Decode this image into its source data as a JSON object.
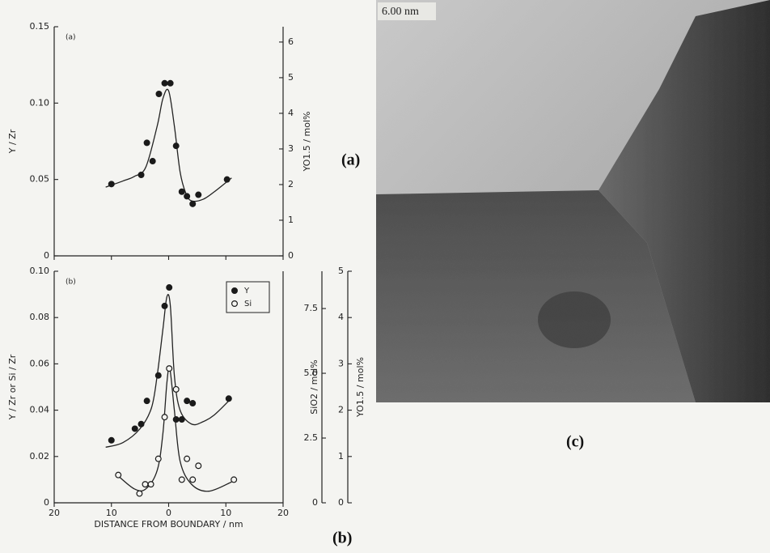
{
  "chart_data": [
    {
      "type": "scatter",
      "panel": "(a)",
      "y_label": "Y / Zr",
      "y2label": "YO1.5 / mol%",
      "xlim": [
        -20,
        20
      ],
      "xticks": [
        -20,
        -10,
        0,
        10,
        20
      ],
      "ylim": [
        0,
        0.15
      ],
      "yticks": [
        0,
        0.05,
        {
          "value": 0.1,
          "label": "0.10"
        },
        0.15
      ],
      "y2lim": [
        0,
        6.43
      ],
      "y2ticks": [
        0,
        1,
        2,
        3,
        4,
        5,
        6
      ],
      "series": [
        {
          "marker": "filled",
          "color": "#1a1a1a",
          "x": [
            -10,
            -4.8,
            -3.8,
            -2.8,
            -1.7,
            -0.7,
            0.3,
            1.3,
            2.3,
            3.2,
            4.2,
            5.2,
            10.2
          ],
          "values": [
            0.047,
            0.053,
            0.074,
            0.062,
            0.106,
            0.113,
            0.113,
            0.072,
            0.042,
            0.039,
            0.034,
            0.04,
            0.05
          ],
          "fit": {
            "x": [
              -11,
              -8,
              -6,
              -4,
              -2,
              -1,
              0,
              1,
              2,
              3,
              4,
              6,
              8,
              11
            ],
            "values": [
              0.045,
              0.049,
              0.052,
              0.058,
              0.085,
              0.103,
              0.108,
              0.085,
              0.055,
              0.041,
              0.036,
              0.037,
              0.042,
              0.051
            ]
          }
        }
      ]
    },
    {
      "type": "scatter",
      "panel": "(b)",
      "x_label": "DISTANCE FROM BOUNDARY / nm",
      "y_label": "Y / Zr or Si / Zr",
      "y2label": "SiO2 / mol%",
      "y3label": "YO1.5 / mol%",
      "xlim": [
        -20,
        20
      ],
      "xticks": [
        {
          "value": -20,
          "label": "20"
        },
        {
          "value": -10,
          "label": "10"
        },
        0,
        10,
        20
      ],
      "ylim": [
        0,
        0.1
      ],
      "yticks": [
        0,
        0.02,
        0.04,
        0.06,
        0.08,
        {
          "value": 0.1,
          "label": "0.10"
        }
      ],
      "y2lim": [
        0,
        8.94
      ],
      "y2ticks": [
        0,
        2.5,
        {
          "value": 5,
          "label": "5.0"
        },
        7.5
      ],
      "y3lim": [
        0,
        5
      ],
      "y3ticks": [
        0,
        1,
        2,
        3,
        4,
        5
      ],
      "legend": "upper right",
      "series": [
        {
          "name": "Y",
          "marker": "filled",
          "color": "#1a1a1a",
          "x": [
            -10,
            -5.9,
            -4.8,
            -3.8,
            -1.8,
            -0.7,
            0.1,
            1.3,
            2.3,
            3.2,
            4.2,
            10.5
          ],
          "values": [
            0.027,
            0.032,
            0.034,
            0.044,
            0.055,
            0.085,
            0.093,
            0.036,
            0.036,
            0.044,
            0.043,
            0.045
          ],
          "fit": {
            "x": [
              -11,
              -8,
              -5,
              -3,
              -2,
              -1,
              -0.3,
              0.3,
              1,
              2,
              4,
              6,
              8,
              10.5
            ],
            "values": [
              0.024,
              0.026,
              0.032,
              0.041,
              0.055,
              0.075,
              0.089,
              0.085,
              0.055,
              0.04,
              0.034,
              0.035,
              0.038,
              0.044
            ]
          }
        },
        {
          "name": "Si",
          "marker": "open",
          "color": "#1a1a1a",
          "x": [
            -8.8,
            -5.1,
            -4.1,
            -3.1,
            -1.8,
            -0.7,
            0.1,
            1.3,
            2.3,
            3.2,
            4.2,
            5.2,
            11.4
          ],
          "values": [
            0.012,
            0.004,
            0.008,
            0.008,
            0.019,
            0.037,
            0.058,
            0.049,
            0.01,
            0.019,
            0.01,
            0.016,
            0.01
          ],
          "fit": {
            "x": [
              -9,
              -6,
              -4,
              -2,
              -1,
              -0.3,
              0.2,
              1,
              2,
              4,
              7,
              11
            ],
            "values": [
              0.012,
              0.006,
              0.006,
              0.014,
              0.03,
              0.052,
              0.058,
              0.04,
              0.018,
              0.008,
              0.005,
              0.009
            ]
          }
        }
      ]
    }
  ],
  "figure": {
    "label_a": "(a)",
    "label_b": "(b)",
    "label_c": "(c)",
    "scale_bar": "6.00 nm"
  }
}
